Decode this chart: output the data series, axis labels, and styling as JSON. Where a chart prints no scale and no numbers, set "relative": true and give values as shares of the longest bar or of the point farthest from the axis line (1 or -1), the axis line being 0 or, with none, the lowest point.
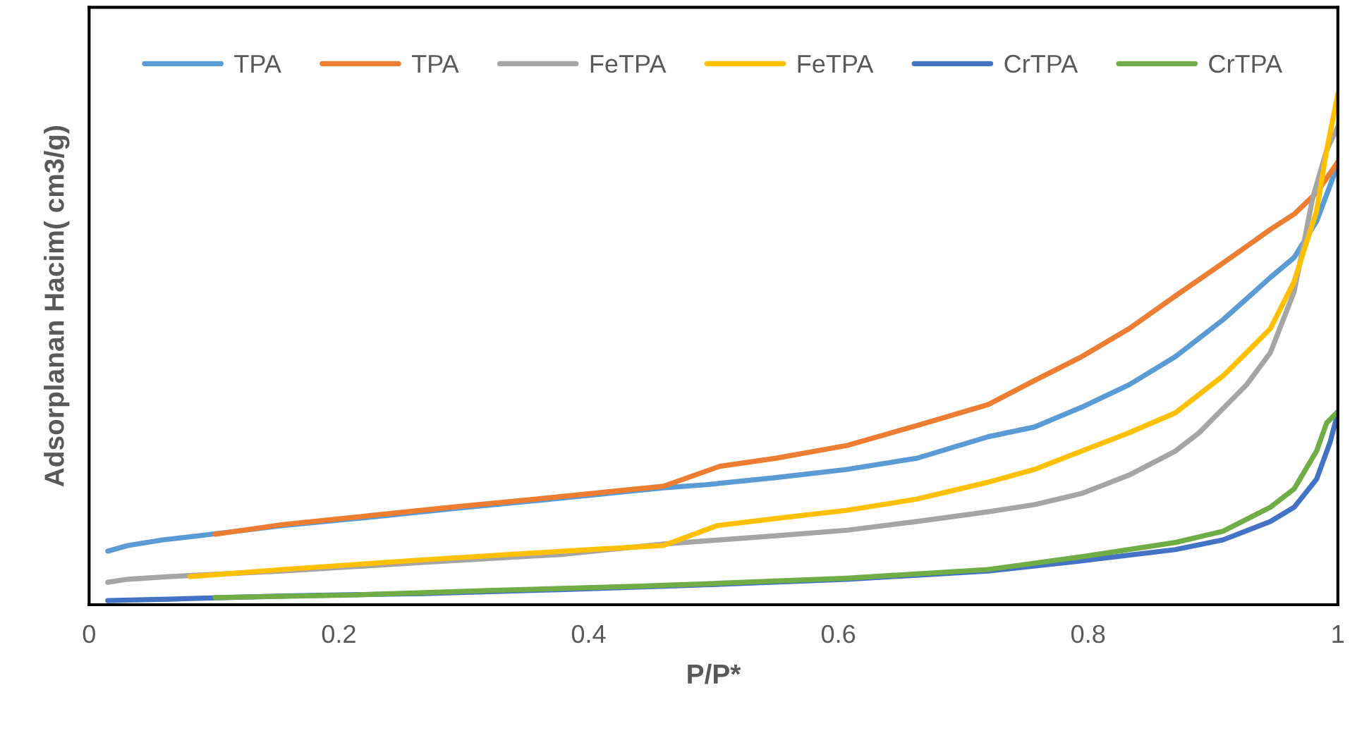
{
  "chart_data": {
    "type": "line",
    "relative": true,
    "xlabel": "P/P*",
    "ylabel": "Adsorplanan Hacim( cm3/g)",
    "xlim": [
      0,
      1
    ],
    "xticks": [
      0,
      0.2,
      0.4,
      0.6,
      0.8,
      1
    ],
    "legend": "top",
    "grid": false,
    "marker": "none",
    "line_style": "solid",
    "series": [
      {
        "name": "TPA",
        "color": "#5b9bd5",
        "x": [
          0.015,
          0.031,
          0.059,
          0.098,
          0.155,
          0.223,
          0.29,
          0.358,
          0.415,
          0.46,
          0.494,
          0.55,
          0.607,
          0.663,
          0.72,
          0.757,
          0.795,
          0.833,
          0.87,
          0.908,
          0.946,
          0.965,
          0.983,
          1.0
        ],
        "values": [
          0.105,
          0.116,
          0.127,
          0.138,
          0.155,
          0.171,
          0.188,
          0.204,
          0.218,
          0.229,
          0.235,
          0.249,
          0.265,
          0.287,
          0.329,
          0.348,
          0.387,
          0.431,
          0.486,
          0.558,
          0.641,
          0.68,
          0.751,
          0.862
        ]
      },
      {
        "name": "TPA",
        "color": "#ed7d31",
        "x": [
          0.101,
          0.155,
          0.223,
          0.29,
          0.358,
          0.415,
          0.46,
          0.505,
          0.55,
          0.607,
          0.663,
          0.72,
          0.757,
          0.795,
          0.833,
          0.87,
          0.908,
          0.946,
          0.965,
          0.983,
          1.0
        ],
        "values": [
          0.138,
          0.157,
          0.174,
          0.191,
          0.207,
          0.221,
          0.232,
          0.271,
          0.287,
          0.312,
          0.351,
          0.392,
          0.439,
          0.486,
          0.541,
          0.605,
          0.669,
          0.735,
          0.765,
          0.807,
          0.867
        ]
      },
      {
        "name": "FeTPA",
        "color": "#a5a5a5",
        "x": [
          0.015,
          0.031,
          0.064,
          0.155,
          0.268,
          0.381,
          0.46,
          0.55,
          0.607,
          0.663,
          0.72,
          0.757,
          0.795,
          0.833,
          0.87,
          0.889,
          0.908,
          0.927,
          0.946,
          0.965,
          0.98,
          0.991,
          1.0
        ],
        "values": [
          0.044,
          0.05,
          0.055,
          0.066,
          0.083,
          0.099,
          0.119,
          0.135,
          0.146,
          0.163,
          0.182,
          0.196,
          0.218,
          0.254,
          0.301,
          0.337,
          0.384,
          0.431,
          0.494,
          0.613,
          0.798,
          0.89,
          0.936
        ]
      },
      {
        "name": "FeTPA",
        "color": "#ffc000",
        "x": [
          0.081,
          0.155,
          0.268,
          0.381,
          0.46,
          0.503,
          0.55,
          0.607,
          0.663,
          0.72,
          0.757,
          0.795,
          0.833,
          0.87,
          0.908,
          0.927,
          0.946,
          0.965,
          0.983,
          0.991,
          1.0
        ],
        "values": [
          0.055,
          0.069,
          0.088,
          0.105,
          0.116,
          0.155,
          0.169,
          0.185,
          0.207,
          0.24,
          0.265,
          0.301,
          0.337,
          0.376,
          0.448,
          0.494,
          0.541,
          0.633,
          0.771,
          0.89,
          1.0
        ]
      },
      {
        "name": "CrTPA",
        "color": "#4472c4",
        "x": [
          0.015,
          0.064,
          0.155,
          0.268,
          0.381,
          0.494,
          0.607,
          0.72,
          0.795,
          0.87,
          0.908,
          0.946,
          0.965,
          0.983,
          0.994,
          1.0
        ],
        "values": [
          0.008,
          0.011,
          0.017,
          0.022,
          0.03,
          0.039,
          0.05,
          0.066,
          0.086,
          0.108,
          0.127,
          0.163,
          0.191,
          0.246,
          0.32,
          0.376
        ]
      },
      {
        "name": "CrTPA",
        "color": "#70ad47",
        "x": [
          0.101,
          0.211,
          0.324,
          0.437,
          0.494,
          0.607,
          0.72,
          0.795,
          0.87,
          0.908,
          0.946,
          0.965,
          0.983,
          0.991,
          1.0
        ],
        "values": [
          0.014,
          0.019,
          0.028,
          0.036,
          0.041,
          0.052,
          0.069,
          0.094,
          0.122,
          0.144,
          0.191,
          0.227,
          0.301,
          0.356,
          0.378
        ]
      }
    ]
  }
}
